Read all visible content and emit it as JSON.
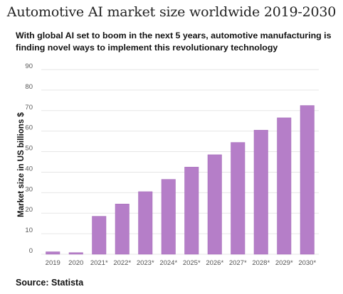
{
  "header": {
    "title": "Automotive AI market size worldwide 2019-2030",
    "subtitle": "With global AI set to boom in the next 5 years, automotive manufacturing is finding novel ways to implement this revolutionary technology"
  },
  "footer": {
    "source": "Source: Statista"
  },
  "colors": {
    "bar": "#b57ec8",
    "bar_stroke": "#a46bb8",
    "grid": "#e6e6e6"
  },
  "chart_data": {
    "type": "bar",
    "title": "Automotive AI market size worldwide 2019-2030",
    "xlabel": "",
    "ylabel": "Market size in US billions $",
    "ylim": [
      0,
      90
    ],
    "yticks": [
      0,
      10,
      20,
      30,
      40,
      50,
      60,
      70,
      80,
      90
    ],
    "grid": true,
    "categories": [
      "2019",
      "2020",
      "2021*",
      "2022*",
      "2023*",
      "2024*",
      "2025*",
      "2026*",
      "2027*",
      "2028*",
      "2029*",
      "2030*"
    ],
    "values": [
      1.2,
      0.8,
      18.5,
      24.5,
      30.5,
      36.5,
      42.5,
      48.5,
      54.5,
      60.5,
      66.5,
      72.5
    ]
  }
}
